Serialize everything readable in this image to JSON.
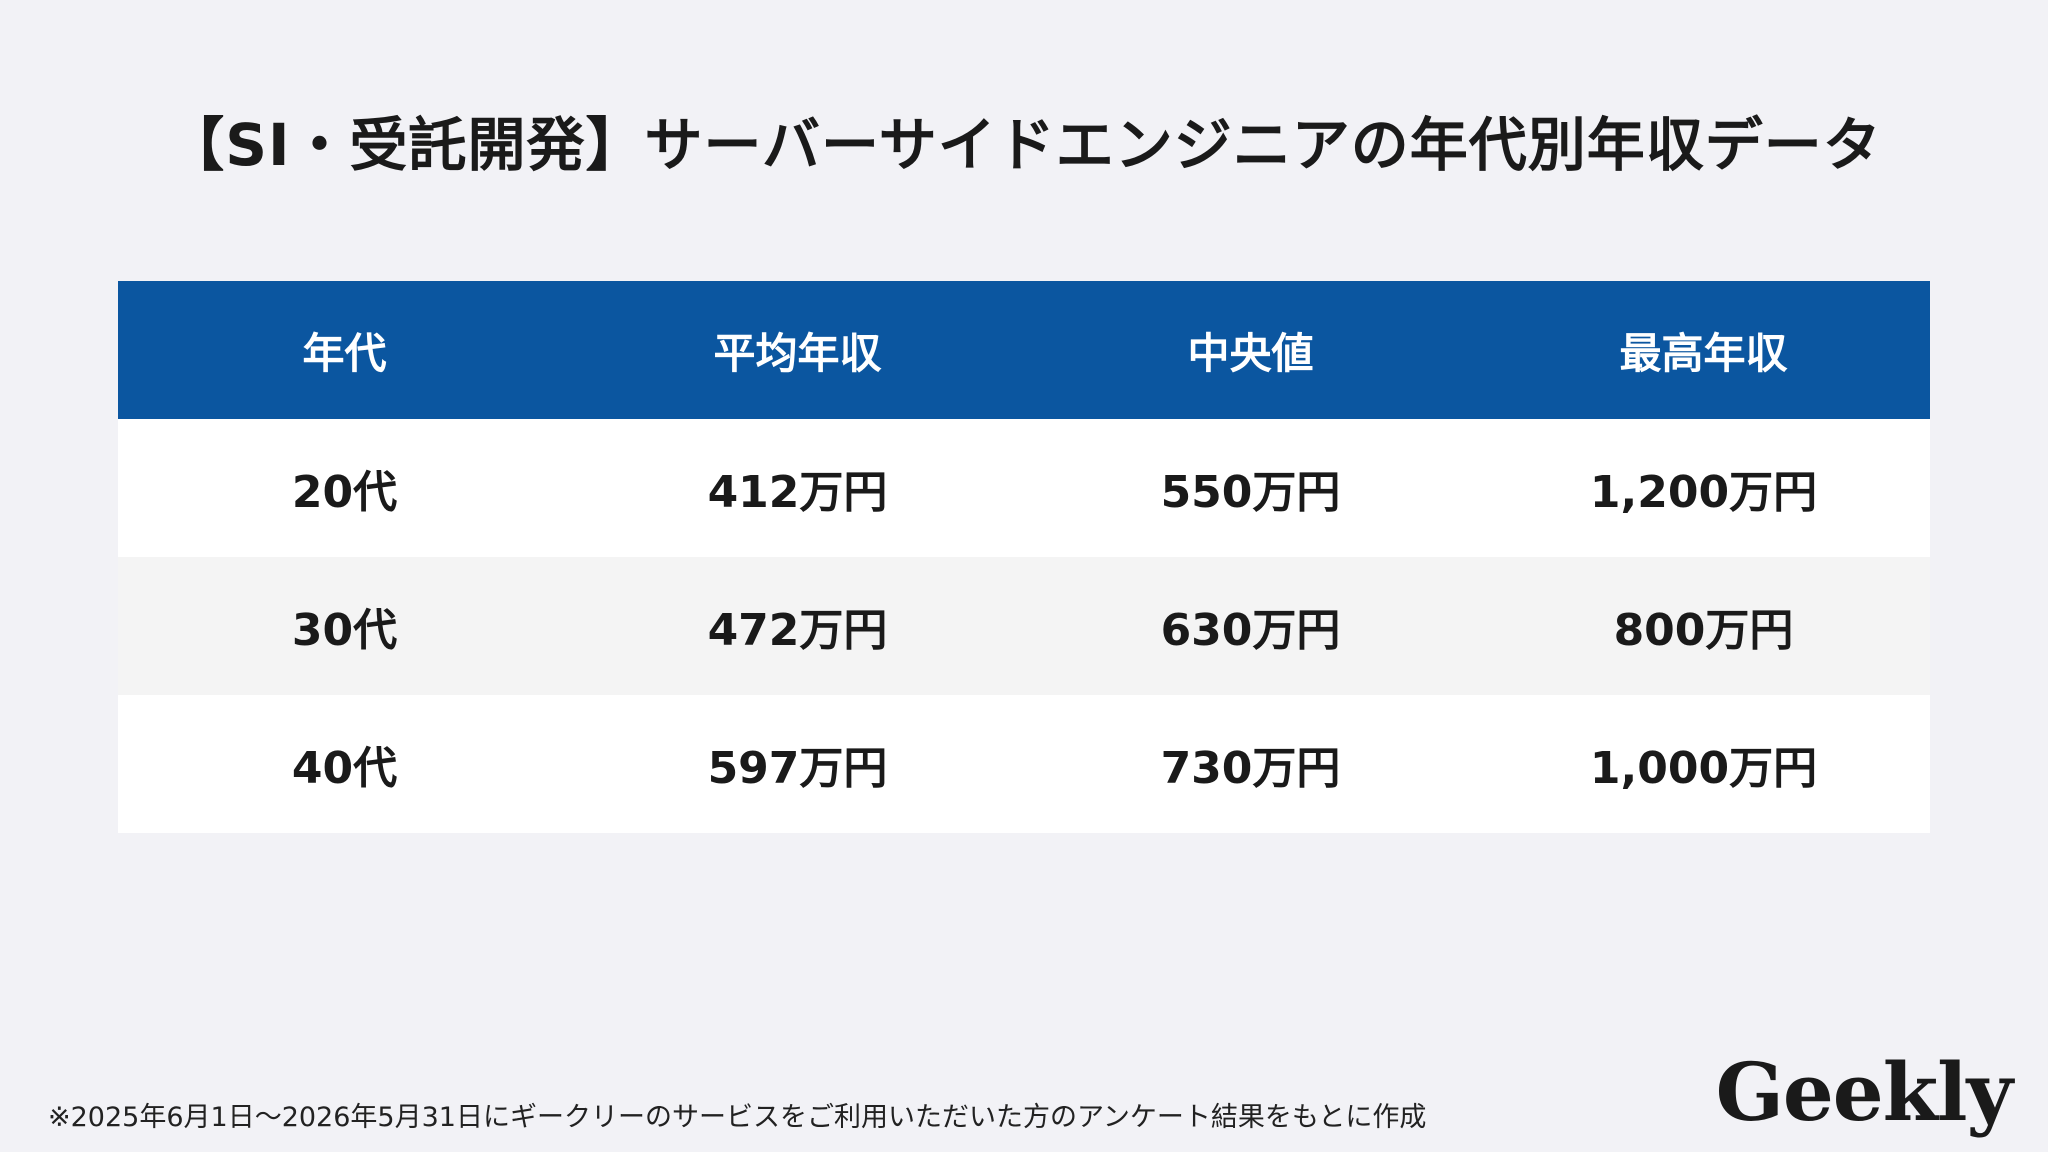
{
  "chart_data": {
    "type": "table",
    "title": "【SI・受託開発】サーバーサイドエンジニアの年代別年収データ",
    "columns": [
      "年代",
      "平均年収",
      "中央値",
      "最高年収"
    ],
    "rows": [
      [
        "20代",
        "412万円",
        "550万円",
        "1,200万円"
      ],
      [
        "30代",
        "472万円",
        "630万円",
        "800万円"
      ],
      [
        "40代",
        "597万円",
        "730万円",
        "1,000万円"
      ]
    ]
  },
  "footnote": "※2025年6月1日〜2026年5月31日にギークリーのサービスをご利用いただいた方のアンケート結果をもとに作成",
  "logo": "Geekly",
  "colors": {
    "header_bg": "#0b56a0",
    "page_bg": "#f2f2f6",
    "row_odd": "#ffffff",
    "row_even": "#f4f4f4"
  }
}
